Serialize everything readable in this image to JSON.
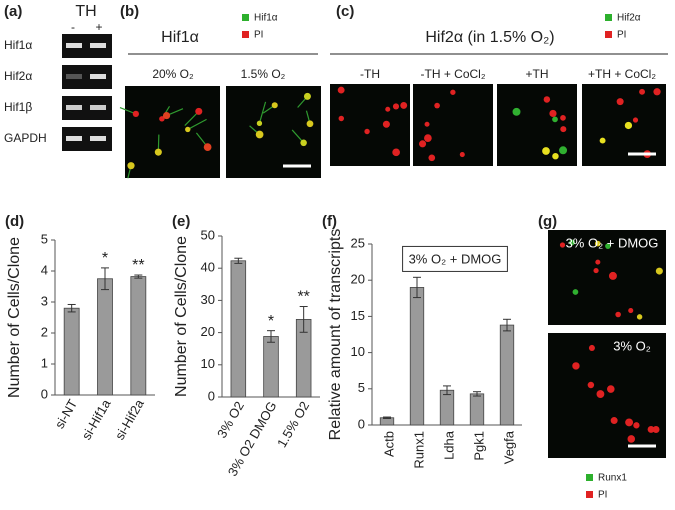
{
  "panels": {
    "a": {
      "label": "(a)",
      "header": "TH",
      "lanes": [
        "-",
        "+"
      ],
      "rows": [
        "Hif1α",
        "Hif2α",
        "Hif1β",
        "GAPDH"
      ]
    },
    "b": {
      "label": "(b)",
      "title": "Hif1α",
      "legend": [
        "Hif1α",
        "PI"
      ],
      "images": [
        "20% O₂",
        "1.5% O₂"
      ]
    },
    "c": {
      "label": "(c)",
      "title": "Hif2α (in 1.5% O₂)",
      "legend": [
        "Hif2α",
        "PI"
      ],
      "images": [
        "-TH",
        "-TH + CoCl₂",
        "+TH",
        "+TH + CoCl₂"
      ]
    },
    "g": {
      "label": "(g)",
      "images": [
        "3% O₂ + DMOG",
        "3% O₂"
      ],
      "legend": [
        "Runx1",
        "PI"
      ]
    }
  },
  "chart_data": [
    {
      "type": "bar",
      "label": "(d)",
      "y_label": "Number of Cells/Clone",
      "categories": [
        "si-NT",
        "si-Hif1a",
        "si-Hif2a"
      ],
      "values": [
        2.8,
        3.75,
        3.82
      ],
      "errors": [
        0.12,
        0.35,
        0.05
      ],
      "significance": [
        null,
        "*",
        "**"
      ],
      "color": "#9a9a9a",
      "ylim": [
        0,
        5
      ],
      "yticks": [
        0,
        1,
        2,
        3,
        4,
        5
      ]
    },
    {
      "type": "bar",
      "label": "(e)",
      "y_label": "Number of Cells/Clone",
      "categories": [
        "3% O2",
        "3% O2 DMOG",
        "1.5% O2"
      ],
      "values": [
        42.3,
        18.8,
        24.1
      ],
      "errors": [
        0.8,
        1.8,
        4.0
      ],
      "significance": [
        null,
        "*",
        "**"
      ],
      "color": "#9a9a9a",
      "ylim": [
        0,
        50
      ],
      "yticks": [
        0,
        10,
        20,
        30,
        40,
        50
      ]
    },
    {
      "type": "bar",
      "label": "(f)",
      "y_label": "Relative amount of transcripts",
      "annotation": "3% O₂ + DMOG",
      "categories": [
        "Actb",
        "Runx1",
        "Ldha",
        "Pgk1",
        "Vegfa"
      ],
      "values": [
        1.0,
        19.0,
        4.8,
        4.3,
        13.8
      ],
      "errors": [
        0.1,
        1.4,
        0.6,
        0.3,
        0.8
      ],
      "color": "#9a9a9a",
      "ylim": [
        0,
        25
      ],
      "yticks": [
        0,
        5,
        10,
        15,
        20,
        25
      ]
    }
  ]
}
